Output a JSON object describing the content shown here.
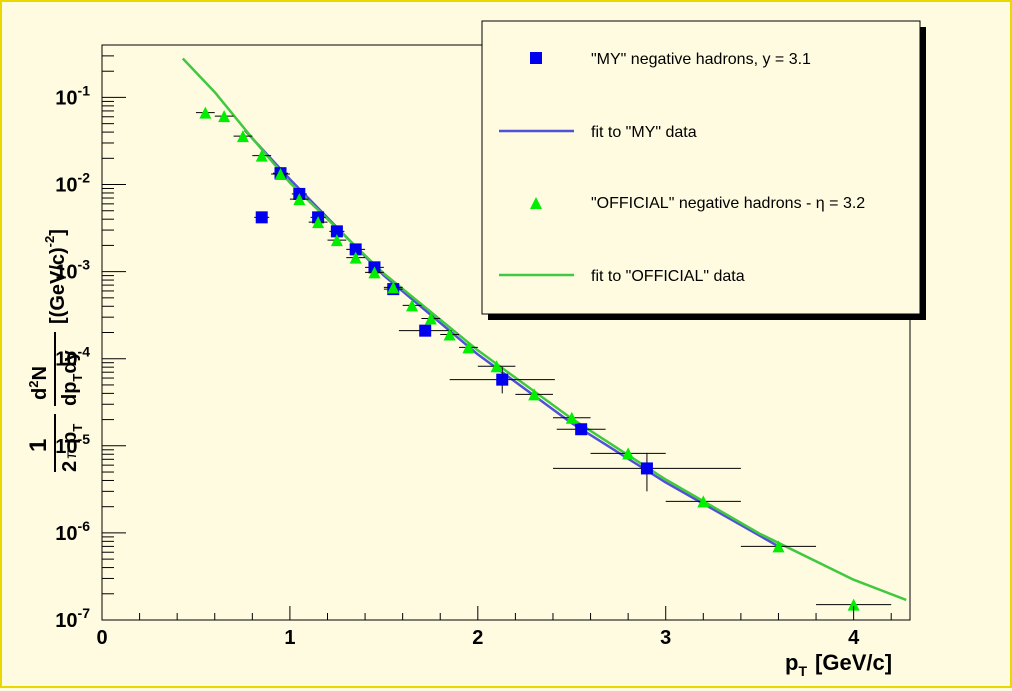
{
  "chart_data": {
    "type": "scatter",
    "title": "",
    "xlabel": "p",
    "xlabel_sub": "T",
    "xlabel_unit": "[GeV/c]",
    "ylabel": {
      "prefix_num": "1",
      "prefix_den_a": "2",
      "prefix_den_pi": "π",
      "prefix_den_p": "p",
      "prefix_den_sub": "T",
      "frac_num_d": "d",
      "frac_num_sup": "2",
      "frac_num_N": "N",
      "frac_den_a": "dp",
      "frac_den_sub": "T",
      "frac_den_b": "dy",
      "unit_a": "[(GeV/c)",
      "unit_sup": "-2",
      "unit_b": "]"
    },
    "xlim": [
      0,
      4.3
    ],
    "ylim": [
      1e-07,
      0.4
    ],
    "yscale": "log",
    "grid": false,
    "legend_position": "top-right",
    "x_ticks": [
      {
        "value": 0,
        "label": "0"
      },
      {
        "value": 1,
        "label": "1"
      },
      {
        "value": 2,
        "label": "2"
      },
      {
        "value": 3,
        "label": "3"
      },
      {
        "value": 4,
        "label": "4"
      }
    ],
    "y_ticks": [
      {
        "value": 1e-07,
        "base": "10",
        "exp": "-7"
      },
      {
        "value": 1e-06,
        "base": "10",
        "exp": "-6"
      },
      {
        "value": 1e-05,
        "base": "10",
        "exp": "-5"
      },
      {
        "value": 0.0001,
        "base": "10",
        "exp": "-4"
      },
      {
        "value": 0.001,
        "base": "10",
        "exp": "-3"
      },
      {
        "value": 0.01,
        "base": "10",
        "exp": "-2"
      },
      {
        "value": 0.1,
        "base": "10",
        "exp": "-1"
      }
    ],
    "legend": [
      {
        "kind": "square",
        "color": "#0000ee",
        "label": "\"MY\" negative hadrons, y = 3.1"
      },
      {
        "kind": "line",
        "color": "#5050d8",
        "label": "fit to \"MY\" data"
      },
      {
        "kind": "triangle",
        "color": "#00ee00",
        "label_a": "\"OFFICIAL\" negative hadrons - ",
        "label_eta": "η",
        "label_b": " = 3.2"
      },
      {
        "kind": "line",
        "color": "#40c840",
        "label": "fit to \"OFFICIAL\" data"
      }
    ],
    "series": [
      {
        "marker": "square",
        "color": "#0000ee",
        "points": [
          {
            "x": 0.85,
            "y": 0.0042,
            "xerr": 0.04
          },
          {
            "x": 0.95,
            "y": 0.0135,
            "xerr": 0.04
          },
          {
            "x": 1.05,
            "y": 0.0078,
            "xerr": 0.04
          },
          {
            "x": 1.15,
            "y": 0.0042,
            "xerr": 0.04
          },
          {
            "x": 1.25,
            "y": 0.0029,
            "xerr": 0.04
          },
          {
            "x": 1.35,
            "y": 0.0018,
            "xerr": 0.05
          },
          {
            "x": 1.45,
            "y": 0.00112,
            "xerr": 0.05
          },
          {
            "x": 1.55,
            "y": 0.00063,
            "xerr": 0.05
          },
          {
            "x": 1.72,
            "y": 0.00021,
            "xerr": 0.14
          },
          {
            "x": 2.13,
            "y": 5.75e-05,
            "xerr": 0.28,
            "yerr_up": 2.25e-05,
            "yerr_dn": 1.75e-05
          },
          {
            "x": 2.55,
            "y": 1.55e-05,
            "xerr": 0.13
          },
          {
            "x": 2.9,
            "y": 5.5e-06,
            "xerr": 0.5,
            "yerr_up": 2.8e-06,
            "yerr_dn": 2.5e-06
          }
        ]
      },
      {
        "marker": "triangle",
        "color": "#00ee00",
        "points": [
          {
            "x": 0.55,
            "y": 0.067,
            "xerr": 0.05
          },
          {
            "x": 0.65,
            "y": 0.061,
            "xerr": 0.05
          },
          {
            "x": 0.75,
            "y": 0.036,
            "xerr": 0.05
          },
          {
            "x": 0.85,
            "y": 0.0215,
            "xerr": 0.05
          },
          {
            "x": 0.95,
            "y": 0.0132,
            "xerr": 0.05
          },
          {
            "x": 1.05,
            "y": 0.0068,
            "xerr": 0.05
          },
          {
            "x": 1.15,
            "y": 0.0037,
            "xerr": 0.05
          },
          {
            "x": 1.25,
            "y": 0.0023,
            "xerr": 0.05
          },
          {
            "x": 1.35,
            "y": 0.00145,
            "xerr": 0.05
          },
          {
            "x": 1.45,
            "y": 0.00098,
            "xerr": 0.05
          },
          {
            "x": 1.55,
            "y": 0.00066,
            "xerr": 0.05
          },
          {
            "x": 1.65,
            "y": 0.00041,
            "xerr": 0.05
          },
          {
            "x": 1.75,
            "y": 0.00029,
            "xerr": 0.05
          },
          {
            "x": 1.85,
            "y": 0.00019,
            "xerr": 0.05
          },
          {
            "x": 1.95,
            "y": 0.000135,
            "xerr": 0.05
          },
          {
            "x": 2.1,
            "y": 8.2e-05,
            "xerr": 0.1
          },
          {
            "x": 2.3,
            "y": 3.9e-05,
            "xerr": 0.1
          },
          {
            "x": 2.5,
            "y": 2.1e-05,
            "xerr": 0.1
          },
          {
            "x": 2.8,
            "y": 8.2e-06,
            "xerr": 0.2
          },
          {
            "x": 3.2,
            "y": 2.3e-06,
            "xerr": 0.2
          },
          {
            "x": 3.6,
            "y": 7e-07,
            "xerr": 0.2
          },
          {
            "x": 4.0,
            "y": 1.5e-07,
            "xerr": 0.2
          }
        ]
      }
    ],
    "fits": [
      {
        "color": "#5050d8",
        "points": [
          [
            0.76,
            0.042
          ],
          [
            1.0,
            0.0115
          ],
          [
            1.5,
            0.0009
          ],
          [
            2.0,
            0.000112
          ],
          [
            2.5,
            1.82e-05
          ],
          [
            3.0,
            3.8e-06
          ],
          [
            3.59,
            7.2e-07
          ]
        ]
      },
      {
        "color": "#40c840",
        "points": [
          [
            0.43,
            0.28
          ],
          [
            0.6,
            0.115
          ],
          [
            0.8,
            0.034
          ],
          [
            1.0,
            0.0105
          ],
          [
            1.5,
            0.00095
          ],
          [
            2.0,
            0.000125
          ],
          [
            2.5,
            2.05e-05
          ],
          [
            3.0,
            4.1e-06
          ],
          [
            3.5,
            9.8e-07
          ],
          [
            4.0,
            2.9e-07
          ],
          [
            4.28,
            1.7e-07
          ]
        ]
      }
    ]
  }
}
